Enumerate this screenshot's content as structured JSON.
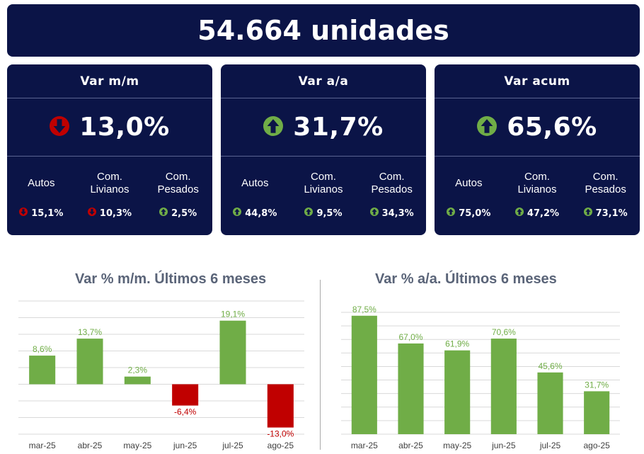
{
  "header": {
    "title": "54.664 unidades"
  },
  "cards": [
    {
      "title": "Var m/m",
      "value": "13,0%",
      "direction": "down",
      "items": [
        {
          "label": "Autos",
          "value": "15,1%",
          "direction": "down"
        },
        {
          "label": "Com.\nLivianos",
          "value": "10,3%",
          "direction": "down"
        },
        {
          "label": "Com.\nPesados",
          "value": "2,5%",
          "direction": "up"
        }
      ]
    },
    {
      "title": "Var a/a",
      "value": "31,7%",
      "direction": "up",
      "items": [
        {
          "label": "Autos",
          "value": "44,8%",
          "direction": "up"
        },
        {
          "label": "Com.\nLivianos",
          "value": "9,5%",
          "direction": "up"
        },
        {
          "label": "Com.\nPesados",
          "value": "34,3%",
          "direction": "up"
        }
      ]
    },
    {
      "title": "Var acum",
      "value": "65,6%",
      "direction": "up",
      "items": [
        {
          "label": "Autos",
          "value": "75,0%",
          "direction": "up"
        },
        {
          "label": "Com.\nLivianos",
          "value": "47,2%",
          "direction": "up"
        },
        {
          "label": "Com.\nPesados",
          "value": "73,1%",
          "direction": "up"
        }
      ]
    }
  ],
  "colors": {
    "navy": "#0b1447",
    "up": "#70ad47",
    "down": "#c00000",
    "bar_up": "#70ad47",
    "bar_down": "#c00000"
  },
  "chart_data": [
    {
      "type": "bar",
      "title": "Var % m/m. Últimos 6 meses",
      "categories": [
        "mar-25",
        "abr-25",
        "may-25",
        "jun-25",
        "jul-25",
        "ago-25"
      ],
      "values": [
        8.6,
        13.7,
        2.3,
        -6.4,
        19.1,
        -13.0
      ],
      "labels": [
        "8,6%",
        "13,7%",
        "2,3%",
        "-6,4%",
        "19,1%",
        "-13,0%"
      ],
      "ylim": [
        -15,
        25
      ],
      "grid": true
    },
    {
      "type": "bar",
      "title": "Var % a/a. Últimos 6 meses",
      "categories": [
        "mar-25",
        "abr-25",
        "may-25",
        "jun-25",
        "jul-25",
        "ago-25"
      ],
      "values": [
        87.5,
        67.0,
        61.9,
        70.6,
        45.6,
        31.7
      ],
      "labels": [
        "87,5%",
        "67,0%",
        "61,9%",
        "70,6%",
        "45,6%",
        "31,7%"
      ],
      "ylim": [
        0,
        90
      ],
      "grid": true
    }
  ]
}
